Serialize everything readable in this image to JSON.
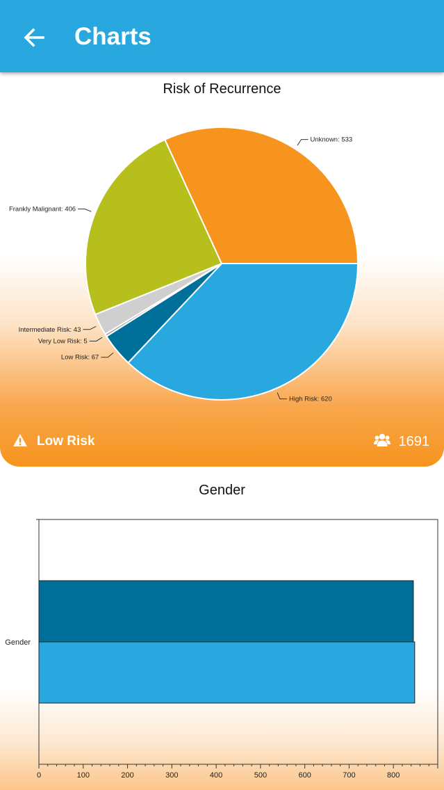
{
  "app_bar": {
    "title": "Charts",
    "back_icon": "arrow-left-icon",
    "color": "#29a8e0"
  },
  "risk_card": {
    "status_icon": "warning-icon",
    "status_label": "Low Risk",
    "count_icon": "users-icon",
    "count": "1691",
    "chart_data": {
      "type": "pie",
      "title": "Risk of Recurrence",
      "slices": [
        {
          "label": "High Risk",
          "value": 620,
          "color": "#29a8e0"
        },
        {
          "label": "Low Risk",
          "value": 67,
          "color": "#00709b"
        },
        {
          "label": "Very Low Risk",
          "value": 5,
          "color": "#9e9e9e"
        },
        {
          "label": "Intermediate Risk",
          "value": 43,
          "color": "#cfcfcf"
        },
        {
          "label": "Frankly Malignant",
          "value": 406,
          "color": "#b6bf1b"
        },
        {
          "label": "Unknown",
          "value": 533,
          "color": "#f7941d"
        }
      ]
    }
  },
  "gender_card": {
    "chart_data": {
      "type": "bar",
      "orientation": "horizontal",
      "title": "Gender",
      "categories": [
        "Gender"
      ],
      "series": [
        {
          "values": [
            845
          ],
          "color": "#00709b"
        },
        {
          "values": [
            848
          ],
          "color": "#29a8e0"
        }
      ],
      "xlim": [
        0,
        900
      ],
      "x_ticks": [
        0,
        100,
        200,
        300,
        400,
        500,
        600,
        700,
        800
      ]
    }
  }
}
